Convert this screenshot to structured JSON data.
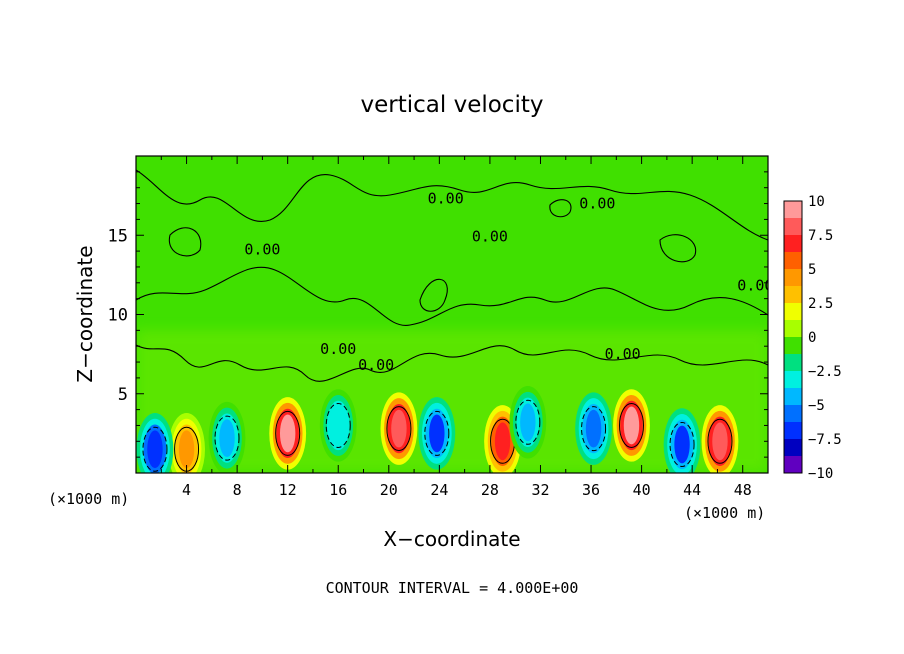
{
  "chart_data": {
    "type": "heatmap",
    "title": "vertical velocity",
    "xlabel": "X−coordinate",
    "ylabel": "Z−coordinate",
    "x_unit_left": "(×1000 m)",
    "x_unit_right": "(×1000 m)",
    "footer": "CONTOUR INTERVAL = 4.000E+00",
    "xlim": [
      0,
      50
    ],
    "ylim": [
      0,
      20
    ],
    "x_ticks": [
      4,
      8,
      12,
      16,
      20,
      24,
      28,
      32,
      36,
      40,
      44,
      48
    ],
    "y_ticks": [
      5,
      10,
      15
    ],
    "contour_labels": [
      {
        "text": "0.00",
        "x": 24.5,
        "y": 17.0
      },
      {
        "text": "0.00",
        "x": 36.5,
        "y": 16.7
      },
      {
        "text": "0.00",
        "x": 28.0,
        "y": 14.6
      },
      {
        "text": "0.00",
        "x": 10.0,
        "y": 13.8
      },
      {
        "text": "0.00",
        "x": 16.0,
        "y": 7.5
      },
      {
        "text": "0.00",
        "x": 19.0,
        "y": 6.5
      },
      {
        "text": "0.00",
        "x": 38.5,
        "y": 7.2
      },
      {
        "text": "0.00",
        "x": 49.0,
        "y": 11.5
      }
    ],
    "colorbar": {
      "ticks": [
        "10",
        "7.5",
        "5",
        "2.5",
        "0",
        "−2.5",
        "−5",
        "−7.5",
        "−10"
      ],
      "levels": [
        10,
        8.75,
        7.5,
        6.25,
        5,
        3.75,
        2.5,
        1.25,
        0,
        -1.25,
        -2.5,
        -3.75,
        -5,
        -6.25,
        -7.5,
        -8.75,
        -10
      ],
      "colors": [
        "#ff9a9a",
        "#ff5a5a",
        "#ff2020",
        "#ff6000",
        "#ff9800",
        "#ffc000",
        "#f0ff00",
        "#a8ff00",
        "#40e000",
        "#00e080",
        "#00f0e0",
        "#00b8ff",
        "#0070ff",
        "#0030ff",
        "#0000c0",
        "#6000c0"
      ]
    },
    "features": [
      {
        "sign": "up",
        "x": 12.0,
        "y": 2.5,
        "peak": 9.0
      },
      {
        "sign": "up",
        "x": 20.8,
        "y": 2.8,
        "peak": 8.5
      },
      {
        "sign": "up",
        "x": 29.0,
        "y": 2.0,
        "peak": 7.0
      },
      {
        "sign": "up",
        "x": 39.2,
        "y": 3.0,
        "peak": 9.5
      },
      {
        "sign": "up",
        "x": 46.2,
        "y": 2.0,
        "peak": 8.5
      },
      {
        "sign": "up",
        "x": 4.0,
        "y": 1.5,
        "peak": 4.5
      },
      {
        "sign": "down",
        "x": 1.5,
        "y": 1.5,
        "peak": -7.0
      },
      {
        "sign": "down",
        "x": 7.2,
        "y": 2.2,
        "peak": -4.0
      },
      {
        "sign": "down",
        "x": 16.0,
        "y": 3.0,
        "peak": -3.5
      },
      {
        "sign": "down",
        "x": 23.8,
        "y": 2.5,
        "peak": -6.5
      },
      {
        "sign": "down",
        "x": 31.0,
        "y": 3.2,
        "peak": -5.0
      },
      {
        "sign": "down",
        "x": 36.2,
        "y": 2.8,
        "peak": -5.5
      },
      {
        "sign": "down",
        "x": 43.2,
        "y": 1.8,
        "peak": -6.5
      }
    ]
  }
}
